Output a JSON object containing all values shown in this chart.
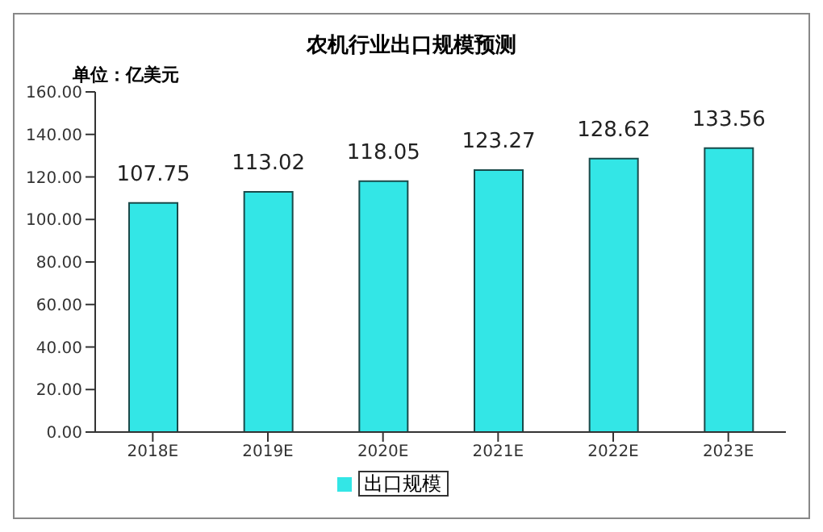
{
  "chart_data": {
    "type": "bar",
    "title": "农机行业出口规模预测",
    "ylabel": "单位：亿美元",
    "categories": [
      "2018E",
      "2019E",
      "2020E",
      "2021E",
      "2022E",
      "2023E"
    ],
    "series": [
      {
        "name": "出口规模",
        "color": "#33e6e6",
        "values": [
          107.75,
          113.02,
          118.05,
          123.27,
          128.62,
          133.56
        ]
      }
    ],
    "ylim": [
      0,
      160
    ],
    "yticks": [
      {
        "value": 0,
        "label": "0.00"
      },
      {
        "value": 20,
        "label": "20.00"
      },
      {
        "value": 40,
        "label": "40.00"
      },
      {
        "value": 60,
        "label": "60.00"
      },
      {
        "value": 80,
        "label": "80.00"
      },
      {
        "value": 100,
        "label": "100.00"
      },
      {
        "value": 120,
        "label": "120.00"
      },
      {
        "value": 140,
        "label": "140.00"
      },
      {
        "value": 160,
        "label": "160.00"
      }
    ],
    "data_labels": true,
    "legend": "bottom",
    "grid": false
  }
}
